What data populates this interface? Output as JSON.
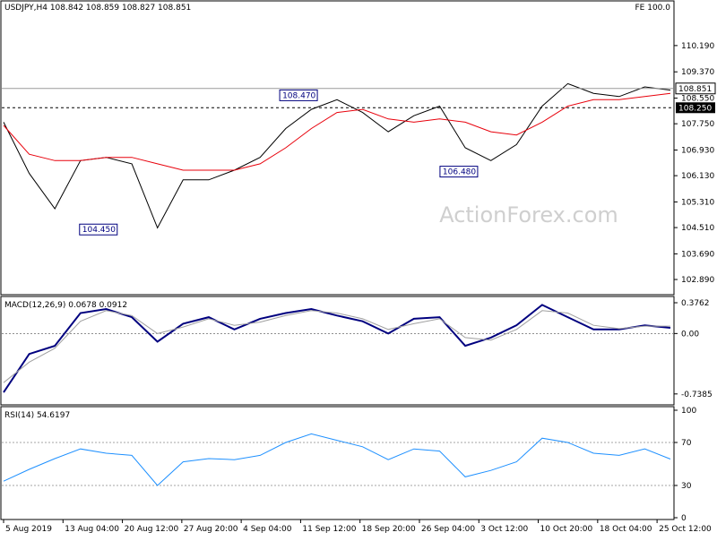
{
  "chart_data": [
    {
      "type": "line",
      "symbol_header": "USDJPY,H4  108.842 108.859 108.827 108.851",
      "corner_label": "FE 100.0",
      "watermark": "ActionForex.com",
      "ylim": [
        102.5,
        111.5
      ],
      "y_ticks": [
        "110.190",
        "109.370",
        "108.550",
        "107.750",
        "106.930",
        "106.130",
        "105.310",
        "104.510",
        "103.690",
        "102.890"
      ],
      "y_tick_values": [
        110.19,
        109.37,
        108.55,
        107.75,
        106.93,
        106.13,
        105.31,
        104.51,
        103.69,
        102.89
      ],
      "current_price_label": "108.851",
      "current_price": 108.851,
      "level_label": "108.250",
      "level": 108.25,
      "annotations": [
        {
          "text": "104.450",
          "x": 18,
          "y": 104.45
        },
        {
          "text": "108.470",
          "x": 46,
          "y": 108.47
        },
        {
          "text": "106.480",
          "x": 71,
          "y": 106.48
        }
      ],
      "series": [
        {
          "role": "price",
          "color": "#000000",
          "x": [
            0,
            4,
            8,
            12,
            16,
            20,
            24,
            28,
            32,
            36,
            40,
            44,
            48,
            52,
            56,
            60,
            64,
            68,
            72,
            76,
            80,
            84,
            88,
            92,
            96,
            100,
            104
          ],
          "values": [
            107.8,
            106.2,
            105.1,
            106.6,
            106.7,
            106.5,
            104.5,
            106.0,
            106.0,
            106.3,
            106.7,
            107.6,
            108.2,
            108.5,
            108.1,
            107.5,
            108.0,
            108.3,
            107.0,
            106.6,
            107.1,
            108.3,
            109.0,
            108.7,
            108.6,
            108.9,
            108.8
          ]
        },
        {
          "role": "moving-average",
          "color": "#e8000b",
          "x": [
            0,
            4,
            8,
            12,
            16,
            20,
            24,
            28,
            32,
            36,
            40,
            44,
            48,
            52,
            56,
            60,
            64,
            68,
            72,
            76,
            80,
            84,
            88,
            92,
            96,
            100,
            104
          ],
          "values": [
            107.7,
            106.8,
            106.6,
            106.6,
            106.7,
            106.7,
            106.5,
            106.3,
            106.3,
            106.3,
            106.5,
            107.0,
            107.6,
            108.1,
            108.2,
            107.9,
            107.8,
            107.9,
            107.8,
            107.5,
            107.4,
            107.8,
            108.3,
            108.5,
            108.5,
            108.6,
            108.7
          ]
        }
      ]
    },
    {
      "type": "line",
      "title": "MACD(12,26,9) 0.0678 0.0912",
      "ylim": [
        -0.85,
        0.42
      ],
      "y_ticks": [
        "0.3762",
        "0.00",
        "-0.7385"
      ],
      "y_tick_values": [
        0.3762,
        0.0,
        -0.7385
      ],
      "series": [
        {
          "role": "macd",
          "color": "#00007f",
          "x": [
            0,
            4,
            8,
            12,
            16,
            20,
            24,
            28,
            32,
            36,
            40,
            44,
            48,
            52,
            56,
            60,
            64,
            68,
            72,
            76,
            80,
            84,
            88,
            92,
            96,
            100,
            104
          ],
          "values": [
            -0.72,
            -0.25,
            -0.15,
            0.25,
            0.3,
            0.2,
            -0.1,
            0.12,
            0.2,
            0.05,
            0.18,
            0.25,
            0.3,
            0.22,
            0.15,
            0.0,
            0.18,
            0.2,
            -0.15,
            -0.05,
            0.1,
            0.35,
            0.2,
            0.05,
            0.05,
            0.1,
            0.07
          ]
        },
        {
          "role": "signal",
          "color": "#a0a0a0",
          "x": [
            0,
            4,
            8,
            12,
            16,
            20,
            24,
            28,
            32,
            36,
            40,
            44,
            48,
            52,
            56,
            60,
            64,
            68,
            72,
            76,
            80,
            84,
            88,
            92,
            96,
            100,
            104
          ],
          "values": [
            -0.6,
            -0.35,
            -0.18,
            0.15,
            0.28,
            0.22,
            0.0,
            0.08,
            0.18,
            0.1,
            0.14,
            0.22,
            0.28,
            0.25,
            0.18,
            0.05,
            0.12,
            0.18,
            -0.05,
            -0.08,
            0.05,
            0.28,
            0.25,
            0.1,
            0.06,
            0.09,
            0.09
          ]
        }
      ]
    },
    {
      "type": "line",
      "title": "RSI(14) 54.6197",
      "ylim": [
        0,
        100
      ],
      "y_ticks": [
        "100",
        "70",
        "30",
        "0"
      ],
      "y_tick_values": [
        100,
        70,
        30,
        0
      ],
      "series": [
        {
          "role": "rsi",
          "color": "#1e90ff",
          "x": [
            0,
            4,
            8,
            12,
            16,
            20,
            24,
            28,
            32,
            36,
            40,
            44,
            48,
            52,
            56,
            60,
            64,
            68,
            72,
            76,
            80,
            84,
            88,
            92,
            96,
            100,
            104
          ],
          "values": [
            34,
            45,
            55,
            64,
            60,
            58,
            30,
            52,
            55,
            54,
            58,
            70,
            78,
            72,
            66,
            54,
            64,
            62,
            38,
            44,
            52,
            74,
            70,
            60,
            58,
            64,
            54.6
          ]
        }
      ]
    }
  ],
  "x_axis": {
    "tick_labels": [
      "5 Aug 2019",
      "13 Aug 04:00",
      "20 Aug 12:00",
      "27 Aug 20:00",
      "4 Sep 04:00",
      "11 Sep 12:00",
      "18 Sep 20:00",
      "26 Sep 04:00",
      "3 Oct 12:00",
      "10 Oct 20:00",
      "18 Oct 04:00",
      "25 Oct 12:00"
    ]
  }
}
